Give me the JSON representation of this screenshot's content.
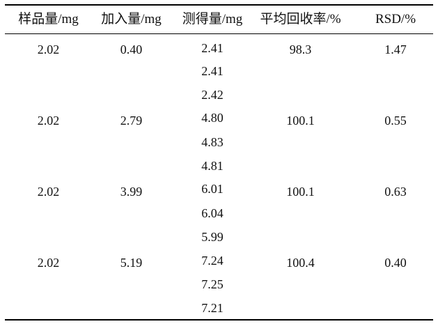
{
  "table": {
    "headers": [
      "样品量/mg",
      "加入量/mg",
      "测得量/mg",
      "平均回收率/%",
      "RSD/%"
    ],
    "groups": [
      {
        "sample": "2.02",
        "added": "0.40",
        "measured": [
          "2.41",
          "2.41",
          "2.42"
        ],
        "recovery": "98.3",
        "rsd": "1.47"
      },
      {
        "sample": "2.02",
        "added": "2.79",
        "measured": [
          "4.80",
          "4.83",
          "4.81"
        ],
        "recovery": "100.1",
        "rsd": "0.55"
      },
      {
        "sample": "2.02",
        "added": "3.99",
        "measured": [
          "6.01",
          "6.04",
          "5.99"
        ],
        "recovery": "100.1",
        "rsd": "0.63"
      },
      {
        "sample": "2.02",
        "added": "5.19",
        "measured": [
          "7.24",
          "7.25",
          "7.21"
        ],
        "recovery": "100.4",
        "rsd": "0.40"
      }
    ]
  }
}
